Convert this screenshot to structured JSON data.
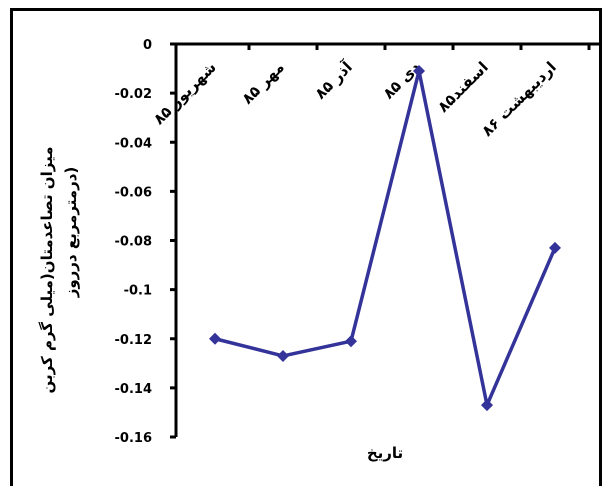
{
  "chart_data": {
    "type": "line",
    "categories": [
      "شهریور ۸۵",
      "مهر ۸۵",
      "آذر ۸۵",
      "دی ۸۵",
      "اسفند۸۵",
      "اردیبهشت ۸۶"
    ],
    "values": [
      -0.12,
      -0.127,
      -0.121,
      -0.011,
      -0.147,
      -0.083
    ],
    "ylim": [
      -0.16,
      0
    ],
    "yticks": [
      0,
      -0.02,
      -0.04,
      -0.06,
      -0.08,
      -0.1,
      -0.12,
      -0.14,
      -0.16
    ],
    "ytick_labels": [
      "0",
      "-0.02",
      "-0.04",
      "-0.06",
      "-0.08",
      "-0.1",
      "-0.12",
      "-0.14",
      "-0.16"
    ],
    "xlabel": "تاریخ",
    "ylabel_line1": "میزان تصاعدمتان(میلی گرم کربن",
    "ylabel_line2": "درمترمربع درروز)",
    "ylabel": "میزان تصاعدمتان(میلی گرم کربن درمترمربع درروز)",
    "grid": false,
    "legend": "none",
    "line_color": "#333399"
  }
}
